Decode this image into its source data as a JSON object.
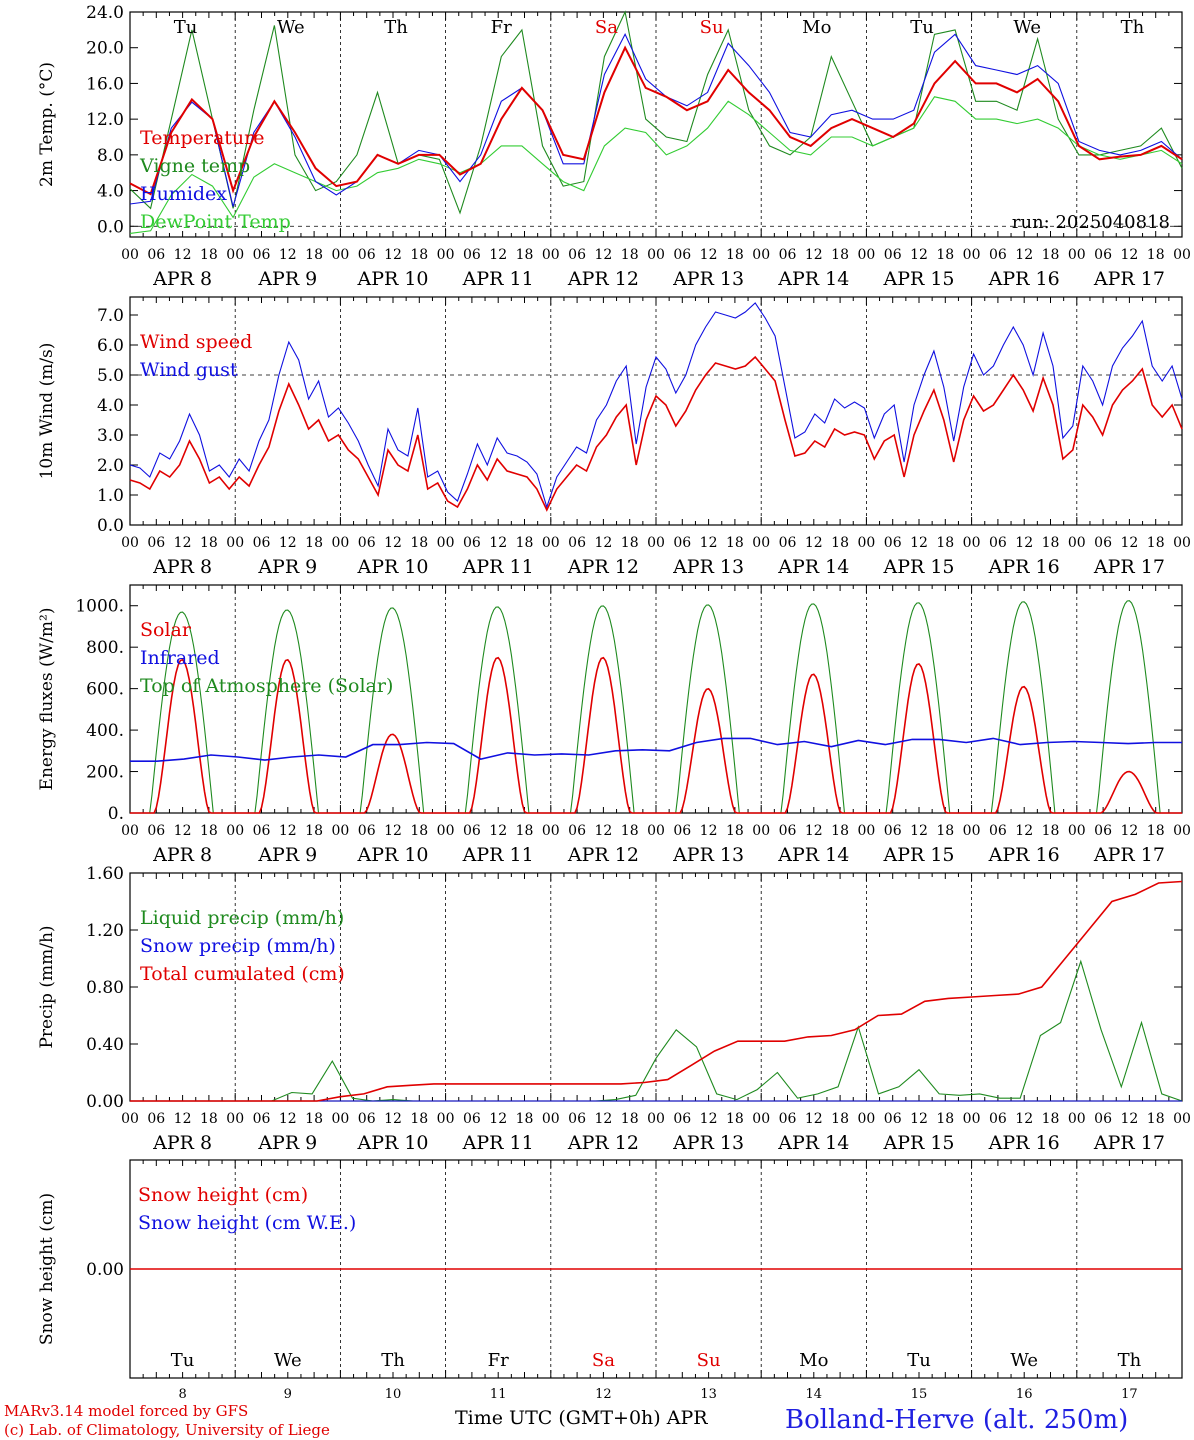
{
  "colors": {
    "red": "#e00000",
    "green": "#1f8a1f",
    "blue": "#1010e0",
    "lightgreen": "#33cc33",
    "axis": "#000000",
    "footer_blue": "#2020e0"
  },
  "days": {
    "names": [
      "Tu",
      "We",
      "Th",
      "Fr",
      "Sa",
      "Su",
      "Mo",
      "Tu",
      "We",
      "Th"
    ],
    "weekend": [
      false,
      false,
      false,
      false,
      true,
      true,
      false,
      false,
      false,
      false
    ],
    "date_labels": [
      "APR  8",
      "APR  9",
      "APR 10",
      "APR 11",
      "APR 12",
      "APR 13",
      "APR 14",
      "APR 15",
      "APR 16",
      "APR 17"
    ],
    "day_numbers": [
      "8",
      "9",
      "10",
      "11",
      "12",
      "13",
      "14",
      "15",
      "16",
      "17"
    ],
    "hour_labels": [
      "00",
      "06",
      "12",
      "18"
    ],
    "final_hour_label": "00"
  },
  "footer": {
    "model": "MARv3.14 model forced by GFS",
    "credit": "(c) Lab. of Climatology, University of Liege",
    "time_axis": "Time UTC (GMT+0h) APR",
    "station": "Bolland-Herve (alt. 250m)"
  },
  "chart_data": [
    {
      "type": "line",
      "id": "temperature",
      "ylabel": "2m Temp. (°C)",
      "ylim": [
        -1.2,
        24.0
      ],
      "yticks": [
        0,
        4,
        8,
        12,
        16,
        20,
        24
      ],
      "ytick_labels": [
        "0.0",
        "4.0",
        "8.0",
        "12.0",
        "16.0",
        "20.0",
        "24.0"
      ],
      "ref_line": 0,
      "annotation": "run: 2025040818",
      "x_hours_step": 6,
      "series": [
        {
          "name": "Temperature",
          "color": "#e00000",
          "values": [
            4.8,
            3.6,
            10.5,
            14.2,
            12.0,
            4.0,
            10.0,
            14.0,
            10.5,
            6.5,
            4.5,
            5.0,
            8.0,
            7.0,
            8.0,
            8.0,
            5.8,
            7.0,
            12.0,
            15.5,
            13.0,
            8.0,
            7.5,
            15.0,
            20.0,
            15.5,
            14.5,
            13.0,
            14.0,
            17.5,
            15.0,
            13.0,
            10.0,
            9.0,
            11.0,
            12.0,
            11.0,
            10.0,
            11.5,
            16.0,
            18.5,
            16.0,
            16.0,
            15.0,
            16.5,
            14.0,
            9.0,
            7.5,
            7.8,
            8.0,
            9.0,
            7.5
          ]
        },
        {
          "name": "Vigne temp",
          "color": "#1f8a1f",
          "values": [
            4.2,
            2.0,
            12.0,
            22.0,
            12.0,
            2.0,
            13.0,
            22.5,
            8.0,
            4.0,
            5.0,
            8.0,
            15.0,
            7.0,
            8.0,
            7.5,
            1.5,
            9.0,
            19.0,
            22.0,
            9.0,
            4.5,
            5.0,
            19.0,
            24.0,
            12.0,
            10.0,
            9.5,
            17.0,
            22.0,
            13.0,
            9.0,
            8.0,
            10.0,
            19.0,
            14.0,
            9.0,
            10.0,
            11.0,
            21.5,
            22.0,
            14.0,
            14.0,
            13.0,
            21.0,
            12.0,
            8.0,
            8.0,
            8.5,
            9.0,
            11.0,
            6.5
          ]
        },
        {
          "name": "Humidex",
          "color": "#1010e0",
          "values": [
            2.5,
            2.8,
            11.0,
            13.9,
            12.0,
            2.2,
            10.5,
            14.0,
            10.0,
            5.0,
            3.5,
            5.0,
            8.0,
            7.0,
            8.5,
            8.0,
            5.0,
            8.0,
            14.0,
            15.5,
            13.0,
            7.0,
            7.0,
            17.0,
            21.5,
            16.5,
            14.5,
            13.5,
            15.0,
            20.5,
            18.0,
            15.0,
            10.5,
            10.0,
            12.5,
            13.0,
            12.0,
            12.0,
            13.0,
            19.5,
            21.5,
            18.0,
            17.5,
            17.0,
            18.0,
            16.0,
            9.5,
            8.5,
            8.0,
            8.5,
            9.5,
            7.5
          ]
        },
        {
          "name": "DewPoint Temp",
          "color": "#33cc33",
          "values": [
            -0.8,
            -0.5,
            3.5,
            5.8,
            4.5,
            1.0,
            5.5,
            7.0,
            6.0,
            5.0,
            4.0,
            4.5,
            6.0,
            6.5,
            7.5,
            7.0,
            6.0,
            7.0,
            9.0,
            9.0,
            7.0,
            5.0,
            4.0,
            9.0,
            11.0,
            10.5,
            8.0,
            9.0,
            11.0,
            14.0,
            12.5,
            10.5,
            8.5,
            8.0,
            10.0,
            10.0,
            9.0,
            10.0,
            11.0,
            14.5,
            14.0,
            12.0,
            12.0,
            11.5,
            12.0,
            11.0,
            9.0,
            8.0,
            7.5,
            8.0,
            8.5,
            7.0
          ]
        }
      ]
    },
    {
      "type": "line",
      "id": "wind",
      "ylabel": "10m Wind (m/s)",
      "ylim": [
        0,
        7.6
      ],
      "yticks": [
        0,
        1,
        2,
        3,
        4,
        5,
        6,
        7
      ],
      "ytick_labels": [
        "0.0",
        "1.0",
        "2.0",
        "3.0",
        "4.0",
        "5.0",
        "6.0",
        "7.0"
      ],
      "ref_line": 5.0,
      "x_hours_step": 3,
      "series": [
        {
          "name": "Wind speed",
          "color": "#e00000",
          "values": [
            1.5,
            1.4,
            1.2,
            1.8,
            1.6,
            2.0,
            2.8,
            2.2,
            1.4,
            1.6,
            1.2,
            1.6,
            1.3,
            2.0,
            2.6,
            3.8,
            4.7,
            4.0,
            3.2,
            3.5,
            2.8,
            3.0,
            2.5,
            2.2,
            1.6,
            1.0,
            2.5,
            2.0,
            1.8,
            3.0,
            1.2,
            1.4,
            0.8,
            0.6,
            1.2,
            2.0,
            1.5,
            2.2,
            1.8,
            1.7,
            1.6,
            1.2,
            0.5,
            1.2,
            1.6,
            2.0,
            1.8,
            2.6,
            3.0,
            3.6,
            4.0,
            2.0,
            3.5,
            4.3,
            4.0,
            3.3,
            3.8,
            4.5,
            5.0,
            5.4,
            5.3,
            5.2,
            5.3,
            5.6,
            5.2,
            4.8,
            3.5,
            2.3,
            2.4,
            2.8,
            2.6,
            3.2,
            3.0,
            3.1,
            3.0,
            2.2,
            2.8,
            3.0,
            1.6,
            3.0,
            3.8,
            4.5,
            3.5,
            2.1,
            3.5,
            4.3,
            3.8,
            4.0,
            4.5,
            5.0,
            4.5,
            3.8,
            4.9,
            4.0,
            2.2,
            2.5,
            4.0,
            3.6,
            3.0,
            4.0,
            4.5,
            4.8,
            5.2,
            4.0,
            3.6,
            4.0,
            3.2
          ]
        },
        {
          "name": "Wind gust",
          "color": "#1010e0",
          "values": [
            2.0,
            1.9,
            1.6,
            2.4,
            2.2,
            2.8,
            3.7,
            3.0,
            1.8,
            2.0,
            1.6,
            2.2,
            1.8,
            2.8,
            3.5,
            5.0,
            6.1,
            5.5,
            4.2,
            4.8,
            3.6,
            3.9,
            3.4,
            2.8,
            2.0,
            1.3,
            3.2,
            2.5,
            2.3,
            3.9,
            1.6,
            1.8,
            1.1,
            0.8,
            1.7,
            2.7,
            2.0,
            2.9,
            2.4,
            2.3,
            2.1,
            1.7,
            0.6,
            1.6,
            2.1,
            2.6,
            2.4,
            3.5,
            4.0,
            4.8,
            5.3,
            2.7,
            4.6,
            5.6,
            5.2,
            4.4,
            5.0,
            6.0,
            6.6,
            7.1,
            7.0,
            6.9,
            7.1,
            7.4,
            6.9,
            6.3,
            4.6,
            2.9,
            3.1,
            3.7,
            3.4,
            4.2,
            3.9,
            4.1,
            3.9,
            2.9,
            3.7,
            4.0,
            2.1,
            4.0,
            5.0,
            5.8,
            4.6,
            2.8,
            4.6,
            5.7,
            5.0,
            5.3,
            6.0,
            6.6,
            6.0,
            5.0,
            6.4,
            5.3,
            2.9,
            3.3,
            5.3,
            4.8,
            4.0,
            5.3,
            5.9,
            6.3,
            6.8,
            5.3,
            4.8,
            5.3,
            4.2
          ]
        }
      ]
    },
    {
      "type": "line",
      "id": "energy",
      "ylabel": "Energy fluxes (W/m²)",
      "ylim": [
        0,
        1100
      ],
      "yticks": [
        0,
        200,
        400,
        600,
        800,
        1000
      ],
      "ytick_labels": [
        "0.",
        "200.",
        "400.",
        "600.",
        "800.",
        "1000."
      ],
      "series": [
        {
          "name": "Solar",
          "color": "#e00000",
          "peaks": [
            740,
            740,
            380,
            750,
            750,
            600,
            670,
            720,
            610,
            200
          ]
        },
        {
          "name": "Infrared",
          "color": "#1010e0",
          "values": [
            250,
            250,
            260,
            280,
            270,
            255,
            270,
            280,
            270,
            330,
            330,
            340,
            335,
            260,
            290,
            280,
            285,
            280,
            300,
            305,
            300,
            340,
            360,
            360,
            330,
            345,
            320,
            350,
            330,
            355,
            355,
            340,
            360,
            330,
            340,
            345,
            340,
            335,
            340,
            340
          ]
        },
        {
          "name": "Top of Atmosphere (Solar)",
          "color": "#1f8a1f",
          "peaks": [
            970,
            980,
            990,
            995,
            1000,
            1005,
            1010,
            1015,
            1020,
            1025
          ]
        }
      ]
    },
    {
      "type": "line",
      "id": "precip",
      "ylabel": "Precip (mm/h)",
      "ylim": [
        0,
        1.6
      ],
      "yticks": [
        0,
        0.4,
        0.8,
        1.2,
        1.6
      ],
      "ytick_labels": [
        "0.00",
        "0.40",
        "0.80",
        "1.20",
        "1.60"
      ],
      "x_hours_step": 6,
      "series": [
        {
          "name": "Liquid precip (mm/h)",
          "color": "#1f8a1f",
          "values": [
            0,
            0,
            0,
            0,
            0,
            0,
            0,
            0,
            0.06,
            0.05,
            0.28,
            0.02,
            0,
            0.01,
            0,
            0,
            0,
            0,
            0,
            0,
            0,
            0,
            0,
            0,
            0.01,
            0.04,
            0.3,
            0.5,
            0.38,
            0.05,
            0.01,
            0.08,
            0.2,
            0.02,
            0.05,
            0.1,
            0.52,
            0.05,
            0.1,
            0.22,
            0.05,
            0.04,
            0.05,
            0.02,
            0.02,
            0.46,
            0.55,
            0.98,
            0.5,
            0.1,
            0.55,
            0.05,
            0.0
          ]
        },
        {
          "name": "Snow precip (mm/h)",
          "color": "#1010e0",
          "values": [
            0,
            0,
            0,
            0,
            0,
            0,
            0,
            0,
            0,
            0,
            0,
            0,
            0,
            0,
            0,
            0,
            0,
            0,
            0,
            0,
            0,
            0,
            0,
            0,
            0,
            0,
            0,
            0,
            0,
            0,
            0,
            0,
            0,
            0,
            0,
            0,
            0,
            0,
            0,
            0,
            0,
            0
          ]
        },
        {
          "name": "Total cumulated (cm)",
          "color": "#e00000",
          "values": [
            0,
            0,
            0,
            0,
            0,
            0,
            0,
            0,
            0,
            0.03,
            0.05,
            0.1,
            0.11,
            0.12,
            0.12,
            0.12,
            0.12,
            0.12,
            0.12,
            0.12,
            0.12,
            0.12,
            0.13,
            0.15,
            0.25,
            0.35,
            0.42,
            0.42,
            0.42,
            0.45,
            0.46,
            0.5,
            0.6,
            0.61,
            0.7,
            0.72,
            0.73,
            0.74,
            0.75,
            0.8,
            1.0,
            1.2,
            1.4,
            1.45,
            1.53,
            1.54
          ]
        }
      ]
    },
    {
      "type": "line",
      "id": "snow",
      "ylabel": "Snow height (cm)",
      "ylim": [
        -1,
        1
      ],
      "yticks": [
        0
      ],
      "ytick_labels": [
        "0.00"
      ],
      "series": [
        {
          "name": "Snow height (cm)",
          "color": "#e00000",
          "values": [
            0,
            0
          ]
        },
        {
          "name": "Snow height (cm W.E.)",
          "color": "#1010e0",
          "values": [
            0,
            0
          ]
        }
      ]
    }
  ]
}
